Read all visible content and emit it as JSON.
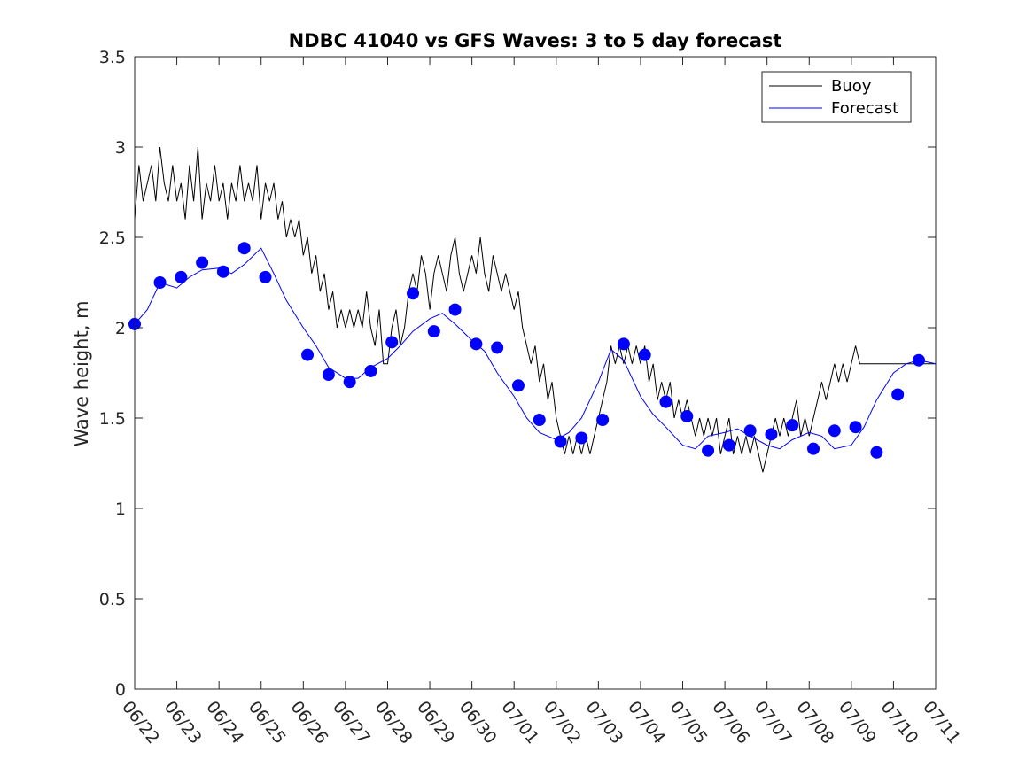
{
  "chart_data": {
    "type": "line",
    "title": "NDBC 41040 vs GFS Waves: 3 to 5 day forecast",
    "xlabel": "",
    "ylabel": "Wave height, m",
    "xlim": [
      "06/22",
      "07/11"
    ],
    "ylim": [
      0,
      3.5
    ],
    "yticks": [
      "0",
      "0.5",
      "1",
      "1.5",
      "2",
      "2.5",
      "3",
      "3.5"
    ],
    "xticks": [
      "06/22",
      "06/23",
      "06/24",
      "06/25",
      "06/26",
      "06/27",
      "06/28",
      "06/29",
      "06/30",
      "07/01",
      "07/02",
      "07/03",
      "07/04",
      "07/05",
      "07/06",
      "07/07",
      "07/08",
      "07/09",
      "07/10",
      "07/11"
    ],
    "grid": false,
    "legend": {
      "position": "top-right",
      "entries": [
        "Buoy",
        "Forecast"
      ]
    },
    "colors": {
      "buoy": "#000000",
      "forecast": "#0000ff"
    },
    "series": [
      {
        "name": "Buoy",
        "x_days_since": "06/22",
        "points": [
          [
            0.0,
            2.6
          ],
          [
            0.1,
            2.9
          ],
          [
            0.2,
            2.7
          ],
          [
            0.3,
            2.8
          ],
          [
            0.4,
            2.9
          ],
          [
            0.5,
            2.7
          ],
          [
            0.6,
            3.0
          ],
          [
            0.7,
            2.8
          ],
          [
            0.8,
            2.7
          ],
          [
            0.9,
            2.9
          ],
          [
            1.0,
            2.7
          ],
          [
            1.1,
            2.8
          ],
          [
            1.2,
            2.6
          ],
          [
            1.3,
            2.9
          ],
          [
            1.4,
            2.7
          ],
          [
            1.5,
            3.0
          ],
          [
            1.6,
            2.6
          ],
          [
            1.7,
            2.8
          ],
          [
            1.8,
            2.7
          ],
          [
            1.9,
            2.9
          ],
          [
            2.0,
            2.7
          ],
          [
            2.1,
            2.8
          ],
          [
            2.2,
            2.6
          ],
          [
            2.3,
            2.8
          ],
          [
            2.4,
            2.7
          ],
          [
            2.5,
            2.9
          ],
          [
            2.6,
            2.7
          ],
          [
            2.7,
            2.8
          ],
          [
            2.8,
            2.7
          ],
          [
            2.9,
            2.9
          ],
          [
            3.0,
            2.6
          ],
          [
            3.1,
            2.8
          ],
          [
            3.2,
            2.7
          ],
          [
            3.3,
            2.8
          ],
          [
            3.4,
            2.6
          ],
          [
            3.5,
            2.7
          ],
          [
            3.6,
            2.5
          ],
          [
            3.7,
            2.6
          ],
          [
            3.8,
            2.5
          ],
          [
            3.9,
            2.6
          ],
          [
            4.0,
            2.4
          ],
          [
            4.1,
            2.5
          ],
          [
            4.2,
            2.3
          ],
          [
            4.3,
            2.4
          ],
          [
            4.4,
            2.2
          ],
          [
            4.5,
            2.3
          ],
          [
            4.6,
            2.1
          ],
          [
            4.7,
            2.2
          ],
          [
            4.8,
            2.0
          ],
          [
            4.9,
            2.1
          ],
          [
            5.0,
            2.0
          ],
          [
            5.1,
            2.1
          ],
          [
            5.2,
            2.0
          ],
          [
            5.3,
            2.1
          ],
          [
            5.4,
            2.0
          ],
          [
            5.5,
            2.2
          ],
          [
            5.6,
            2.0
          ],
          [
            5.7,
            1.9
          ],
          [
            5.8,
            2.1
          ],
          [
            5.9,
            1.8
          ],
          [
            6.0,
            1.8
          ],
          [
            6.1,
            2.0
          ],
          [
            6.2,
            2.1
          ],
          [
            6.3,
            1.9
          ],
          [
            6.4,
            2.0
          ],
          [
            6.5,
            2.2
          ],
          [
            6.6,
            2.3
          ],
          [
            6.7,
            2.2
          ],
          [
            6.8,
            2.4
          ],
          [
            6.9,
            2.3
          ],
          [
            7.0,
            2.1
          ],
          [
            7.1,
            2.3
          ],
          [
            7.2,
            2.4
          ],
          [
            7.3,
            2.3
          ],
          [
            7.4,
            2.2
          ],
          [
            7.5,
            2.4
          ],
          [
            7.6,
            2.5
          ],
          [
            7.7,
            2.3
          ],
          [
            7.8,
            2.2
          ],
          [
            7.9,
            2.3
          ],
          [
            8.0,
            2.4
          ],
          [
            8.1,
            2.3
          ],
          [
            8.2,
            2.5
          ],
          [
            8.3,
            2.3
          ],
          [
            8.4,
            2.2
          ],
          [
            8.5,
            2.4
          ],
          [
            8.6,
            2.3
          ],
          [
            8.7,
            2.2
          ],
          [
            8.8,
            2.3
          ],
          [
            8.9,
            2.2
          ],
          [
            9.0,
            2.1
          ],
          [
            9.1,
            2.2
          ],
          [
            9.2,
            2.0
          ],
          [
            9.3,
            1.9
          ],
          [
            9.4,
            1.8
          ],
          [
            9.5,
            1.9
          ],
          [
            9.6,
            1.7
          ],
          [
            9.7,
            1.8
          ],
          [
            9.8,
            1.6
          ],
          [
            9.9,
            1.7
          ],
          [
            10.0,
            1.5
          ],
          [
            10.1,
            1.4
          ],
          [
            10.2,
            1.3
          ],
          [
            10.3,
            1.4
          ],
          [
            10.4,
            1.3
          ],
          [
            10.5,
            1.4
          ],
          [
            10.6,
            1.3
          ],
          [
            10.7,
            1.4
          ],
          [
            10.8,
            1.3
          ],
          [
            10.9,
            1.4
          ],
          [
            11.0,
            1.5
          ],
          [
            11.1,
            1.6
          ],
          [
            11.2,
            1.7
          ],
          [
            11.3,
            1.9
          ],
          [
            11.4,
            1.8
          ],
          [
            11.5,
            1.9
          ],
          [
            11.6,
            1.8
          ],
          [
            11.7,
            1.9
          ],
          [
            11.8,
            1.8
          ],
          [
            11.9,
            1.9
          ],
          [
            12.0,
            1.8
          ],
          [
            12.1,
            1.9
          ],
          [
            12.2,
            1.7
          ],
          [
            12.3,
            1.8
          ],
          [
            12.4,
            1.6
          ],
          [
            12.5,
            1.7
          ],
          [
            12.6,
            1.6
          ],
          [
            12.7,
            1.7
          ],
          [
            12.8,
            1.5
          ],
          [
            12.9,
            1.6
          ],
          [
            13.0,
            1.5
          ],
          [
            13.1,
            1.6
          ],
          [
            13.2,
            1.5
          ],
          [
            13.3,
            1.4
          ],
          [
            13.4,
            1.5
          ],
          [
            13.5,
            1.4
          ],
          [
            13.6,
            1.5
          ],
          [
            13.7,
            1.4
          ],
          [
            13.8,
            1.5
          ],
          [
            13.9,
            1.3
          ],
          [
            14.0,
            1.4
          ],
          [
            14.1,
            1.5
          ],
          [
            14.2,
            1.3
          ],
          [
            14.3,
            1.4
          ],
          [
            14.4,
            1.3
          ],
          [
            14.5,
            1.4
          ],
          [
            14.6,
            1.3
          ],
          [
            14.7,
            1.4
          ],
          [
            14.8,
            1.3
          ],
          [
            14.9,
            1.2
          ],
          [
            15.0,
            1.3
          ],
          [
            15.1,
            1.4
          ],
          [
            15.2,
            1.5
          ],
          [
            15.3,
            1.4
          ],
          [
            15.4,
            1.5
          ],
          [
            15.5,
            1.4
          ],
          [
            15.6,
            1.5
          ],
          [
            15.7,
            1.6
          ],
          [
            15.8,
            1.4
          ],
          [
            15.9,
            1.5
          ],
          [
            16.0,
            1.4
          ],
          [
            16.1,
            1.5
          ],
          [
            16.2,
            1.6
          ],
          [
            16.3,
            1.7
          ],
          [
            16.4,
            1.6
          ],
          [
            16.5,
            1.7
          ],
          [
            16.6,
            1.8
          ],
          [
            16.7,
            1.7
          ],
          [
            16.8,
            1.8
          ],
          [
            16.9,
            1.7
          ],
          [
            17.0,
            1.8
          ],
          [
            17.1,
            1.9
          ],
          [
            17.2,
            1.8
          ],
          [
            17.3,
            1.8
          ],
          [
            17.4,
            1.8
          ],
          [
            17.5,
            1.8
          ],
          [
            17.6,
            1.8
          ],
          [
            17.7,
            1.8
          ],
          [
            17.8,
            1.8
          ],
          [
            17.9,
            1.8
          ],
          [
            18.0,
            1.8
          ],
          [
            18.1,
            1.8
          ],
          [
            18.2,
            1.8
          ],
          [
            18.3,
            1.8
          ],
          [
            18.4,
            1.8
          ],
          [
            18.5,
            1.8
          ],
          [
            18.6,
            1.8
          ],
          [
            18.7,
            1.8
          ],
          [
            18.8,
            1.8
          ],
          [
            18.9,
            1.8
          ],
          [
            19.0,
            1.8
          ]
        ]
      },
      {
        "name": "Forecast",
        "x_days_since": "06/22",
        "points": [
          [
            0.0,
            2.02
          ],
          [
            0.3,
            2.1
          ],
          [
            0.6,
            2.25
          ],
          [
            1.0,
            2.22
          ],
          [
            1.3,
            2.28
          ],
          [
            1.6,
            2.32
          ],
          [
            2.0,
            2.33
          ],
          [
            2.3,
            2.3
          ],
          [
            2.6,
            2.35
          ],
          [
            3.0,
            2.44
          ],
          [
            3.3,
            2.3
          ],
          [
            3.6,
            2.15
          ],
          [
            4.0,
            2.0
          ],
          [
            4.3,
            1.9
          ],
          [
            4.6,
            1.78
          ],
          [
            5.0,
            1.72
          ],
          [
            5.3,
            1.72
          ],
          [
            5.6,
            1.78
          ],
          [
            6.0,
            1.83
          ],
          [
            6.3,
            1.9
          ],
          [
            6.6,
            1.98
          ],
          [
            7.0,
            2.05
          ],
          [
            7.3,
            2.08
          ],
          [
            7.6,
            2.02
          ],
          [
            8.0,
            1.93
          ],
          [
            8.3,
            1.87
          ],
          [
            8.6,
            1.75
          ],
          [
            9.0,
            1.62
          ],
          [
            9.3,
            1.5
          ],
          [
            9.6,
            1.42
          ],
          [
            10.0,
            1.38
          ],
          [
            10.3,
            1.42
          ],
          [
            10.6,
            1.5
          ],
          [
            11.0,
            1.7
          ],
          [
            11.3,
            1.88
          ],
          [
            11.6,
            1.82
          ],
          [
            12.0,
            1.62
          ],
          [
            12.3,
            1.52
          ],
          [
            12.6,
            1.45
          ],
          [
            13.0,
            1.35
          ],
          [
            13.3,
            1.33
          ],
          [
            13.6,
            1.4
          ],
          [
            14.0,
            1.42
          ],
          [
            14.3,
            1.44
          ],
          [
            14.6,
            1.4
          ],
          [
            15.0,
            1.35
          ],
          [
            15.3,
            1.33
          ],
          [
            15.6,
            1.38
          ],
          [
            16.0,
            1.42
          ],
          [
            16.3,
            1.4
          ],
          [
            16.6,
            1.33
          ],
          [
            17.0,
            1.35
          ],
          [
            17.3,
            1.45
          ],
          [
            17.6,
            1.6
          ],
          [
            18.0,
            1.75
          ],
          [
            18.3,
            1.8
          ],
          [
            18.6,
            1.82
          ],
          [
            19.0,
            1.8
          ]
        ]
      }
    ],
    "markers": {
      "series": "Forecast",
      "points": [
        [
          0.0,
          2.02
        ],
        [
          0.6,
          2.25
        ],
        [
          1.1,
          2.28
        ],
        [
          1.6,
          2.36
        ],
        [
          2.1,
          2.31
        ],
        [
          2.6,
          2.44
        ],
        [
          3.1,
          2.28
        ],
        [
          4.1,
          1.85
        ],
        [
          4.6,
          1.74
        ],
        [
          5.1,
          1.7
        ],
        [
          5.6,
          1.76
        ],
        [
          6.1,
          1.92
        ],
        [
          6.6,
          2.19
        ],
        [
          7.1,
          1.98
        ],
        [
          7.6,
          2.1
        ],
        [
          8.1,
          1.91
        ],
        [
          8.6,
          1.89
        ],
        [
          9.1,
          1.68
        ],
        [
          9.6,
          1.49
        ],
        [
          10.1,
          1.37
        ],
        [
          10.6,
          1.39
        ],
        [
          11.1,
          1.49
        ],
        [
          11.6,
          1.91
        ],
        [
          12.1,
          1.85
        ],
        [
          12.6,
          1.59
        ],
        [
          13.1,
          1.51
        ],
        [
          13.6,
          1.32
        ],
        [
          14.1,
          1.35
        ],
        [
          14.6,
          1.43
        ],
        [
          15.1,
          1.41
        ],
        [
          15.6,
          1.46
        ],
        [
          16.1,
          1.33
        ],
        [
          16.6,
          1.43
        ],
        [
          17.1,
          1.45
        ],
        [
          17.6,
          1.31
        ],
        [
          18.1,
          1.63
        ],
        [
          18.6,
          1.82
        ]
      ]
    }
  }
}
